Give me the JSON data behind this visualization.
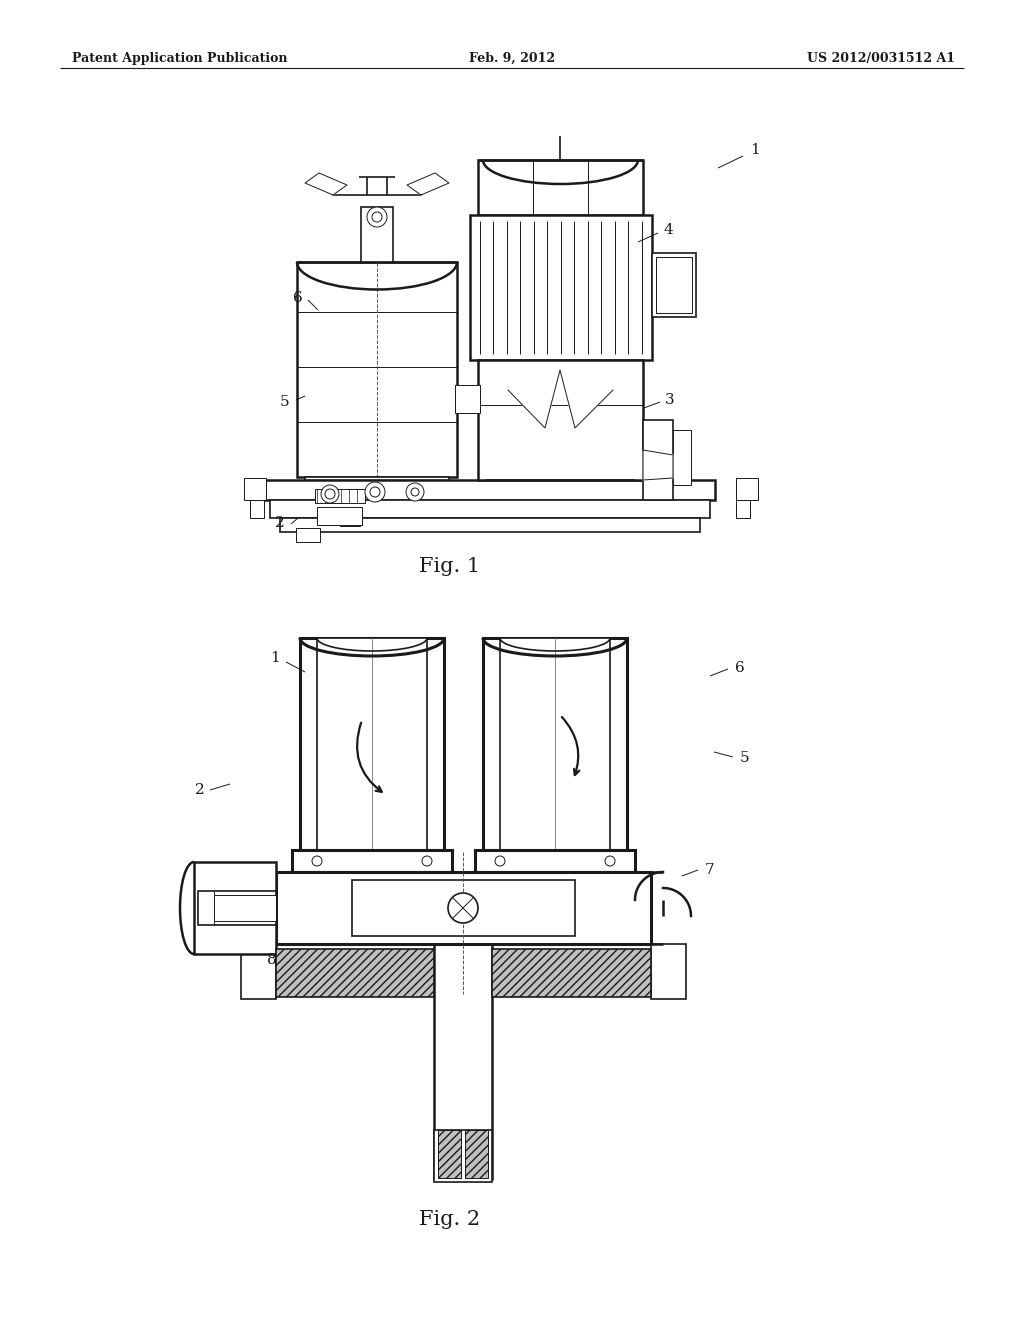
{
  "bg_color": "#ffffff",
  "line_color": "#1a1a1a",
  "header_left": "Patent Application Publication",
  "header_center": "Feb. 9, 2012",
  "header_right": "US 2012/0031512 A1",
  "fig1_label": "Fig. 1",
  "fig2_label": "Fig. 2",
  "lw_thin": 0.7,
  "lw_med": 1.2,
  "lw_thick": 1.8,
  "lw_bold": 2.2
}
